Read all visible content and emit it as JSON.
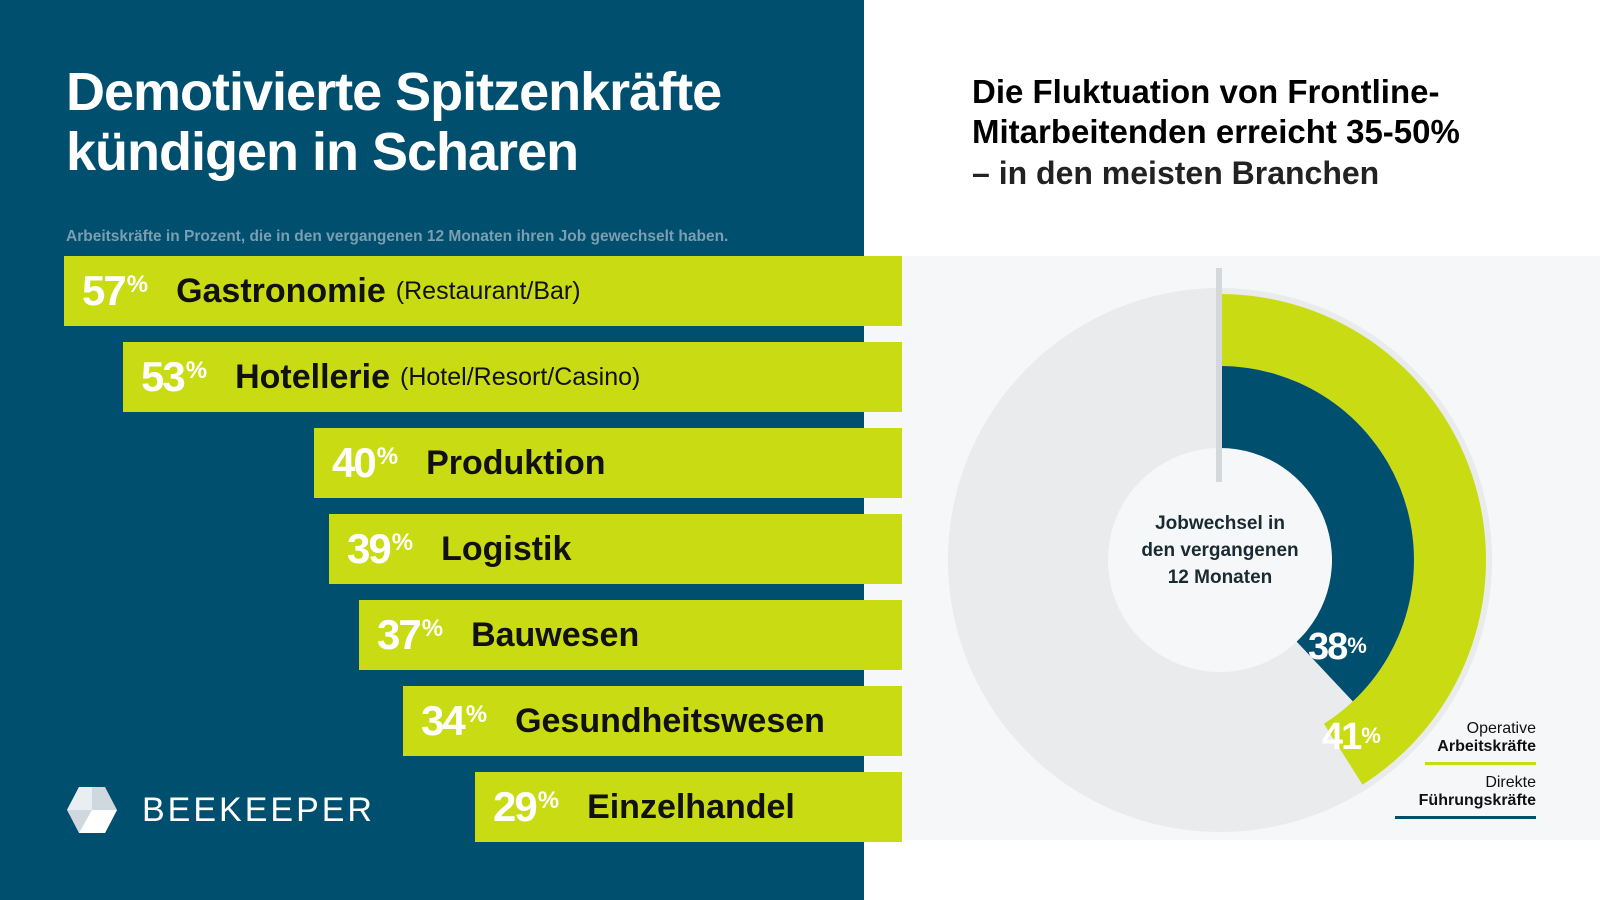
{
  "left": {
    "title_line1": "Demotivierte Spitzenkräfte",
    "title_line2": "kündigen in Scharen",
    "subtitle": "Arbeitskräfte in Prozent, die in den vergangenen 12 Monaten ihren Job gewechselt haben."
  },
  "right": {
    "title_line1": "Die Fluktuation von Frontline-",
    "title_line2": "Mitarbeitenden erreicht 35-50%",
    "title_line3": "– in den meisten Branchen",
    "center_line1": "Jobwechsel in",
    "center_line2": "den vergangenen",
    "center_line3": "12 Monaten",
    "legend": [
      {
        "line1": "Operative",
        "line2": "Arbeitskräfte",
        "color": "#c9db12"
      },
      {
        "line1": "Direkte",
        "line2": "Führungskräfte",
        "color": "#014f6e"
      }
    ]
  },
  "logo": {
    "text": "BEEKEEPER"
  },
  "colors": {
    "navy": "#014f6e",
    "lime": "#c9db12",
    "grey": "#e9ebed",
    "white": "#ffffff"
  },
  "chart_data": [
    {
      "type": "bar",
      "orientation": "horizontal",
      "categories": [
        "Gastronomie",
        "Hotellerie",
        "Produktion",
        "Logistik",
        "Bauwesen",
        "Gesundheitswesen",
        "Einzelhandel"
      ],
      "subtitles": [
        "(Restaurant/Bar)",
        "(Hotel/Resort/Casino)",
        "",
        "",
        "",
        "",
        ""
      ],
      "values": [
        57,
        53,
        40,
        39,
        37,
        34,
        29
      ],
      "value_labels": [
        "57",
        "53",
        "40",
        "39",
        "37",
        "34",
        "29"
      ],
      "unit": "%"
    },
    {
      "type": "pie",
      "series": [
        {
          "name": "Operative Arbeitskräfte",
          "value": 41,
          "label": "41"
        },
        {
          "name": "Direkte Führungskräfte",
          "value": 38,
          "label": "38"
        }
      ],
      "unit": "%"
    }
  ]
}
